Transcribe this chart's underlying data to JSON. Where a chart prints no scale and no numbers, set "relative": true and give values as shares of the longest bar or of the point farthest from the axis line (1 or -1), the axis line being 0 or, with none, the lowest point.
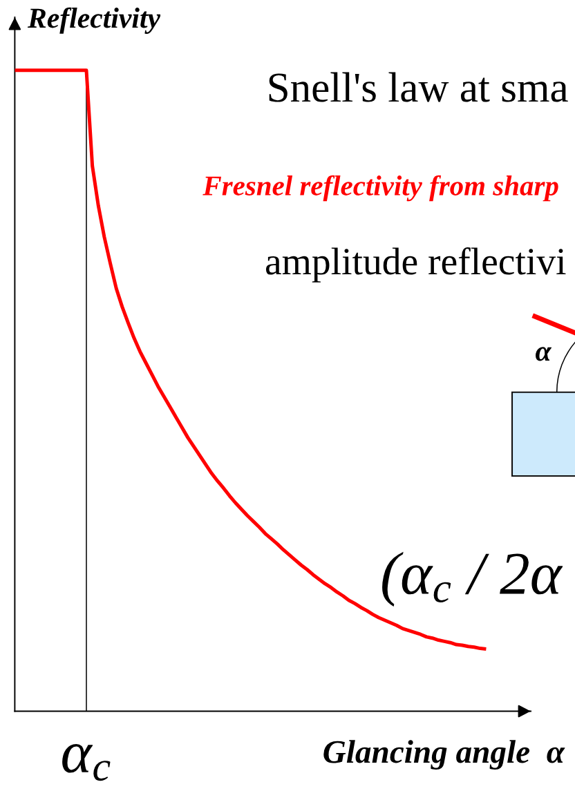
{
  "chart_data": {
    "type": "line",
    "title": "Snell's law at sma",
    "subtitle": "Fresnel reflectivity from sharp",
    "xlabel": "Glancing angle  α",
    "ylabel": "Reflectivity",
    "annotations": [
      "amplitude reflectivi",
      "(α$_{c}$ / 2α",
      "α",
      "α$_{c}$"
    ],
    "relative": true,
    "categories": [
      null,
      null,
      null,
      null,
      null,
      null,
      null,
      null,
      null,
      null,
      null,
      null,
      null,
      null,
      null,
      null,
      null,
      null,
      null,
      null,
      null,
      null,
      null,
      null,
      null,
      null,
      null,
      null,
      null,
      null,
      null,
      null,
      null,
      null,
      null,
      null,
      null,
      null,
      null,
      null,
      null,
      null,
      null,
      null,
      null,
      null,
      null,
      null,
      null,
      null,
      null,
      null,
      null,
      null,
      null,
      null,
      null,
      null,
      null,
      null,
      null,
      null,
      null,
      null,
      null,
      null,
      null,
      null,
      null,
      null,
      null,
      null,
      null,
      null,
      null,
      null,
      null,
      null,
      null,
      null
    ],
    "series": [
      {
        "color": "#ff0000",
        "values": [
          1.0,
          1.0,
          1.0,
          1.0,
          1.0,
          1.0,
          1.0,
          1.0,
          1.0,
          1.0,
          1.0,
          1.0,
          1.0,
          0.851,
          0.789,
          0.74,
          0.699,
          0.66,
          0.631,
          0.606,
          0.582,
          0.561,
          0.543,
          0.525,
          0.507,
          0.491,
          0.475,
          0.459,
          0.443,
          0.427,
          0.413,
          0.399,
          0.385,
          0.371,
          0.359,
          0.348,
          0.336,
          0.325,
          0.315,
          0.305,
          0.296,
          0.287,
          0.277,
          0.269,
          0.261,
          0.252,
          0.244,
          0.236,
          0.228,
          0.221,
          0.213,
          0.206,
          0.199,
          0.193,
          0.186,
          0.18,
          0.173,
          0.168,
          0.162,
          0.157,
          0.151,
          0.146,
          0.142,
          0.138,
          0.134,
          0.129,
          0.126,
          0.123,
          0.12,
          0.116,
          0.114,
          0.111,
          0.109,
          0.107,
          0.104,
          0.103,
          0.101,
          0.1,
          0.098,
          0.097
        ]
      }
    ]
  }
}
